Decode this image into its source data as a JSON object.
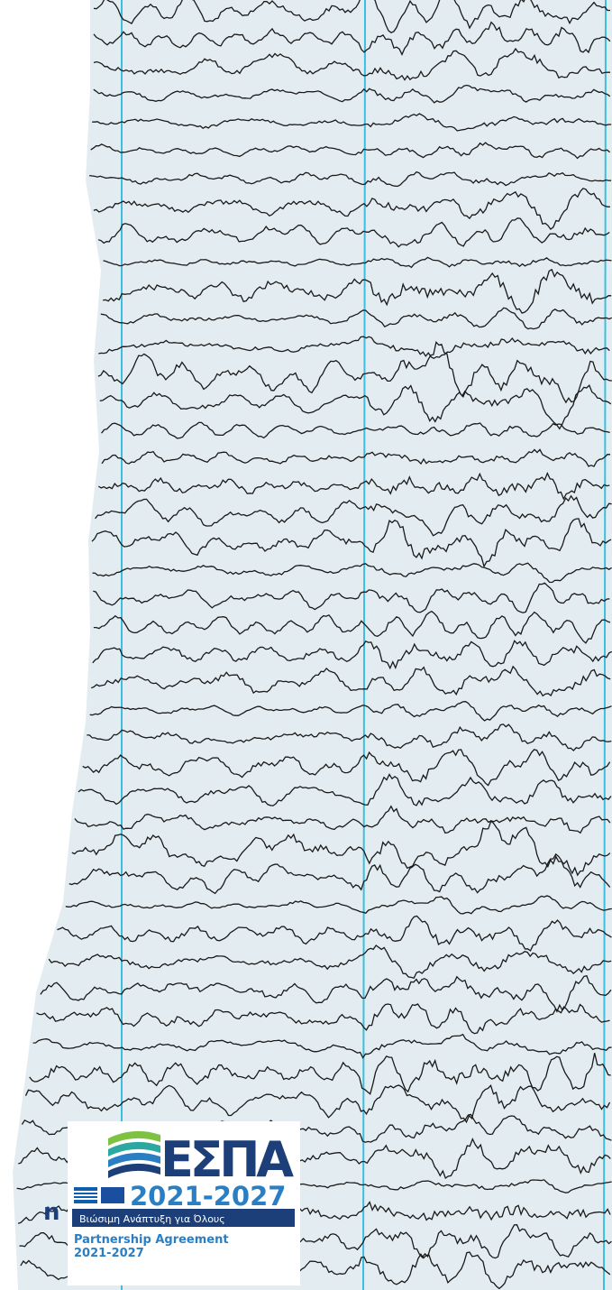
{
  "fragment_text": "n",
  "logo": {
    "title": "ΕΣΠΑ",
    "years": "2021-2027",
    "tagline": "Βιώσιμη Ανάπτυξη για Όλους",
    "partnership": "Partnership Agreement",
    "partnership_years": "2021-2027"
  }
}
